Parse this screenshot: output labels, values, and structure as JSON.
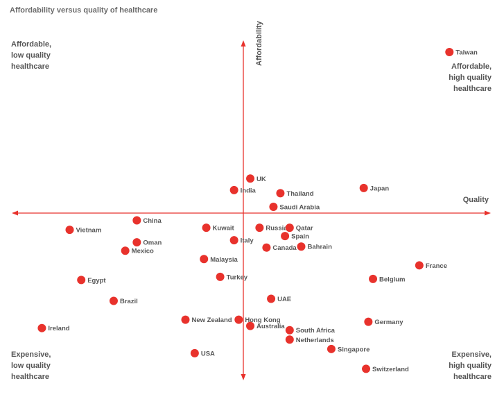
{
  "chart_data": {
    "type": "scatter",
    "title": "Affordability versus quality of healthcare",
    "xlabel": "Quality",
    "ylabel": "Affordability",
    "xlim": [
      -10,
      10
    ],
    "ylim": [
      -8,
      8
    ],
    "quadrants": {
      "top_left": [
        "Affordable,",
        "low quality",
        "healthcare"
      ],
      "top_right": [
        "Affordable,",
        "high quality",
        "healthcare"
      ],
      "bottom_left": [
        "Expensive,",
        "low quality",
        "healthcare"
      ],
      "bottom_right": [
        "Expensive,",
        "high quality",
        "healthcare"
      ]
    },
    "points": [
      {
        "name": "Taiwan",
        "x": 8.9,
        "y": 7.7
      },
      {
        "name": "UK",
        "x": 0.3,
        "y": 1.65
      },
      {
        "name": "India",
        "x": -0.4,
        "y": 1.1
      },
      {
        "name": "Thailand",
        "x": 1.6,
        "y": 0.95
      },
      {
        "name": "Japan",
        "x": 5.2,
        "y": 1.2
      },
      {
        "name": "Saudi Arabia",
        "x": 1.3,
        "y": 0.3
      },
      {
        "name": "China",
        "x": -4.6,
        "y": -0.35
      },
      {
        "name": "Vietnam",
        "x": -7.5,
        "y": -0.8
      },
      {
        "name": "Kuwait",
        "x": -1.6,
        "y": -0.7
      },
      {
        "name": "Russia",
        "x": 0.7,
        "y": -0.7
      },
      {
        "name": "Qatar",
        "x": 2.0,
        "y": -0.7
      },
      {
        "name": "Spain",
        "x": 1.8,
        "y": -1.1
      },
      {
        "name": "Oman",
        "x": -4.6,
        "y": -1.4
      },
      {
        "name": "Italy",
        "x": -0.4,
        "y": -1.3
      },
      {
        "name": "Canada",
        "x": 1.0,
        "y": -1.65
      },
      {
        "name": "Bahrain",
        "x": 2.5,
        "y": -1.6
      },
      {
        "name": "Mexico",
        "x": -5.1,
        "y": -1.8
      },
      {
        "name": "Malaysia",
        "x": -1.7,
        "y": -2.2
      },
      {
        "name": "France",
        "x": 7.6,
        "y": -2.5
      },
      {
        "name": "Egypt",
        "x": -7.0,
        "y": -3.2
      },
      {
        "name": "Turkey",
        "x": -1.0,
        "y": -3.05
      },
      {
        "name": "Belgium",
        "x": 5.6,
        "y": -3.15
      },
      {
        "name": "Brazil",
        "x": -5.6,
        "y": -4.2
      },
      {
        "name": "UAE",
        "x": 1.2,
        "y": -4.1
      },
      {
        "name": "New Zealand",
        "x": -2.5,
        "y": -5.1
      },
      {
        "name": "Hong Kong",
        "x": -0.2,
        "y": -5.1
      },
      {
        "name": "Australia",
        "x": 0.3,
        "y": -5.4
      },
      {
        "name": "Germany",
        "x": 5.4,
        "y": -5.2
      },
      {
        "name": "Ireland",
        "x": -8.7,
        "y": -5.5
      },
      {
        "name": "South Africa",
        "x": 2.0,
        "y": -5.6
      },
      {
        "name": "Netherlands",
        "x": 2.0,
        "y": -6.05
      },
      {
        "name": "Singapore",
        "x": 3.8,
        "y": -6.5
      },
      {
        "name": "USA",
        "x": -2.1,
        "y": -6.7
      },
      {
        "name": "Switzerland",
        "x": 5.3,
        "y": -7.45
      }
    ]
  },
  "colors": {
    "accent": "#e8322c",
    "text": "#555555"
  }
}
